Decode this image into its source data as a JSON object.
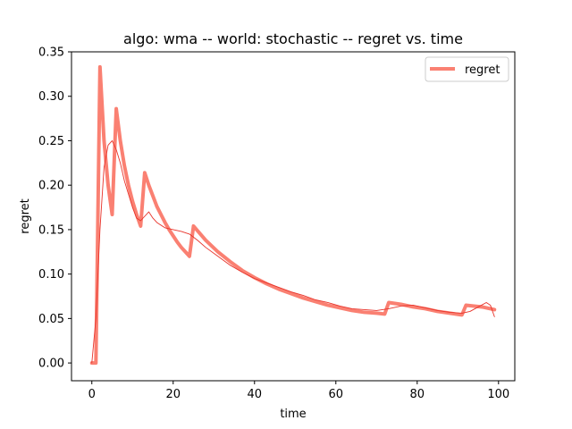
{
  "chart_data": {
    "type": "line",
    "title": "algo: wma -- world: stochastic -- regret vs. time",
    "xlabel": "time",
    "ylabel": "regret",
    "xlim": [
      -5,
      104
    ],
    "ylim": [
      -0.02,
      0.35
    ],
    "xticks": [
      0,
      20,
      40,
      60,
      80,
      100
    ],
    "yticks": [
      0.0,
      0.05,
      0.1,
      0.15,
      0.2,
      0.25,
      0.3,
      0.35
    ],
    "xtick_labels": [
      "0",
      "20",
      "40",
      "60",
      "80",
      "100"
    ],
    "ytick_labels": [
      "0.00",
      "0.05",
      "0.10",
      "0.15",
      "0.20",
      "0.25",
      "0.30",
      "0.35"
    ],
    "legend": {
      "entries": [
        "regret"
      ],
      "placement": "top-right"
    },
    "grid": false,
    "series": [
      {
        "name": "regret",
        "color": "#fa8072",
        "width": "thick",
        "x": [
          0,
          1,
          2,
          3,
          4,
          5,
          6,
          7,
          8,
          9,
          10,
          11,
          12,
          13,
          14,
          15,
          16,
          17,
          18,
          19,
          20,
          21,
          22,
          23,
          24,
          25,
          28,
          31,
          34,
          37,
          40,
          43,
          46,
          49,
          52,
          55,
          58,
          61,
          64,
          67,
          70,
          72,
          73,
          76,
          79,
          82,
          85,
          88,
          91,
          92,
          94,
          96,
          98,
          99
        ],
        "values": [
          0.0,
          0.0,
          0.333,
          0.25,
          0.2,
          0.167,
          0.286,
          0.25,
          0.222,
          0.2,
          0.182,
          0.167,
          0.154,
          0.214,
          0.2,
          0.188,
          0.176,
          0.167,
          0.158,
          0.15,
          0.143,
          0.136,
          0.13,
          0.125,
          0.12,
          0.154,
          0.138,
          0.125,
          0.114,
          0.104,
          0.096,
          0.089,
          0.083,
          0.078,
          0.073,
          0.069,
          0.065,
          0.062,
          0.059,
          0.057,
          0.056,
          0.055,
          0.068,
          0.066,
          0.063,
          0.061,
          0.058,
          0.056,
          0.054,
          0.065,
          0.064,
          0.063,
          0.061,
          0.06
        ]
      },
      {
        "name": "",
        "color": "#e8332a",
        "width": "thin",
        "x": [
          0,
          1,
          2,
          3,
          4,
          5,
          6,
          7,
          8,
          9,
          10,
          11,
          12,
          13,
          14,
          15,
          16,
          18,
          20,
          22,
          24,
          26,
          28,
          31,
          34,
          37,
          40,
          43,
          46,
          49,
          52,
          55,
          58,
          61,
          64,
          67,
          70,
          73,
          76,
          79,
          82,
          85,
          88,
          91,
          93,
          95,
          97,
          98,
          99
        ],
        "values": [
          0.0,
          0.05,
          0.15,
          0.22,
          0.245,
          0.25,
          0.24,
          0.225,
          0.205,
          0.19,
          0.175,
          0.163,
          0.16,
          0.165,
          0.17,
          0.163,
          0.158,
          0.152,
          0.15,
          0.148,
          0.145,
          0.138,
          0.13,
          0.12,
          0.11,
          0.102,
          0.095,
          0.09,
          0.085,
          0.08,
          0.076,
          0.071,
          0.068,
          0.064,
          0.061,
          0.06,
          0.059,
          0.061,
          0.064,
          0.065,
          0.062,
          0.059,
          0.057,
          0.056,
          0.058,
          0.063,
          0.068,
          0.065,
          0.052
        ]
      }
    ]
  }
}
